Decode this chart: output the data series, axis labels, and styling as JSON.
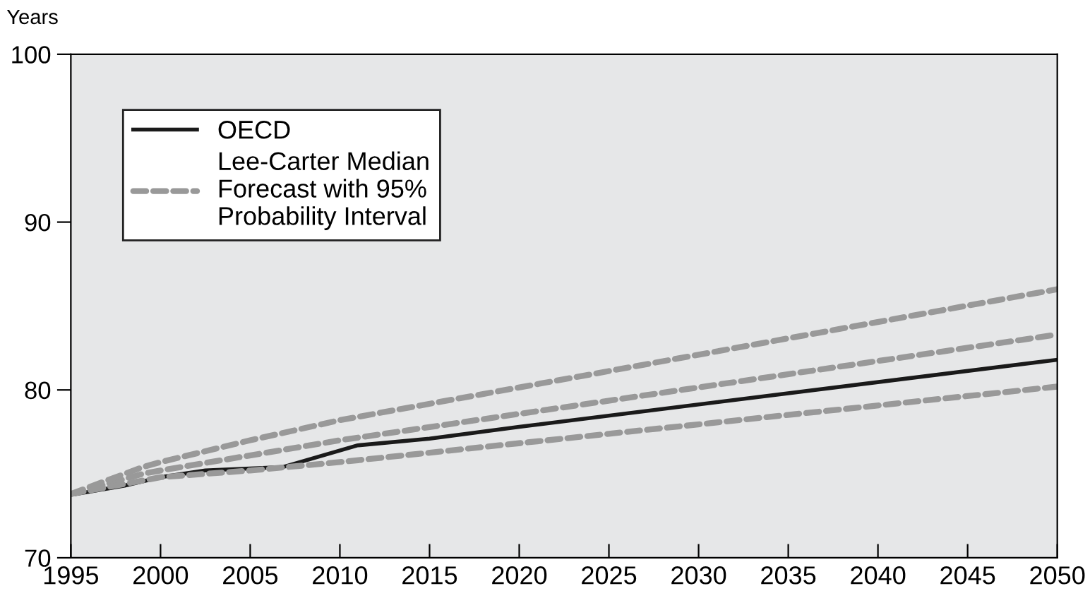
{
  "chart_data": {
    "type": "line",
    "ylabel": "Years",
    "xlim": [
      1995,
      2050
    ],
    "xticks": [
      1995,
      2000,
      2005,
      2010,
      2015,
      2020,
      2025,
      2030,
      2035,
      2040,
      2045,
      2050
    ],
    "ylim": [
      70,
      100
    ],
    "yticks": [
      70,
      80,
      90,
      100
    ],
    "grid": false,
    "legend": "top left",
    "marker": "none",
    "series": [
      {
        "name": "OECD",
        "color": "#1a1a1a",
        "line_style": "solid",
        "x": [
          1995.3,
          1998,
          2000,
          2002.5,
          2006.8,
          2011,
          2015,
          2020,
          2050
        ],
        "values": [
          73.8,
          74.3,
          74.8,
          75.2,
          75.4,
          76.7,
          77.1,
          77.8,
          81.8
        ]
      },
      {
        "name": "Lee-Carter Median Forecast with 95% Probability Interval",
        "color": "#999999",
        "line_style": "dashed",
        "x": [
          1995,
          1999,
          2000,
          2010,
          2050
        ],
        "values": [
          73.8,
          75.0,
          75.2,
          77.0,
          83.3
        ]
      },
      {
        "color": "#999999",
        "line_style": "dashed",
        "x": [
          1995,
          1999,
          2000,
          2005,
          2010,
          2050
        ],
        "values": [
          73.8,
          75.4,
          75.7,
          77.0,
          78.2,
          86.0
        ]
      },
      {
        "color": "#999999",
        "line_style": "dashed",
        "x": [
          1995,
          2000,
          2005,
          2010,
          2050
        ],
        "values": [
          73.8,
          74.8,
          75.2,
          75.7,
          80.2
        ]
      }
    ]
  }
}
